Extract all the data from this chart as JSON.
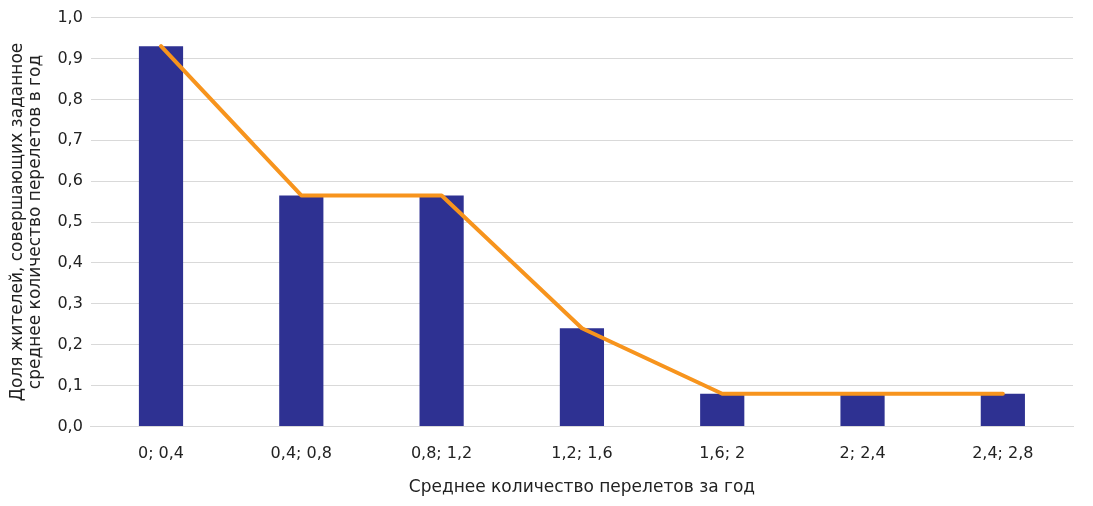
{
  "chart_data": {
    "type": "bar",
    "xlabel": "Среднее количество перелетов за год",
    "ylabel": "Доля жителей, совершающих заданное среднее количество перелетов в год",
    "categories": [
      "0; 0,4",
      "0,4; 0,8",
      "0,8; 1,2",
      "1,2; 1,6",
      "1,6; 2",
      "2; 2,4",
      "2,4; 2,8"
    ],
    "series": [
      {
        "color": "#2e3192",
        "values": [
          0.93,
          0.565,
          0.565,
          0.24,
          0.08,
          0.08,
          0.08
        ]
      },
      {
        "type": "line",
        "color": "#f7941d",
        "values": [
          0.93,
          0.565,
          0.565,
          0.24,
          0.08,
          0.08,
          0.08
        ]
      }
    ],
    "ylim": [
      0,
      1
    ],
    "yticks": [
      {
        "value": 0,
        "label": "0,0"
      },
      {
        "value": 0.1,
        "label": "0,1"
      },
      {
        "value": 0.2,
        "label": "0,2"
      },
      {
        "value": 0.3,
        "label": "0,3"
      },
      {
        "value": 0.4,
        "label": "0,4"
      },
      {
        "value": 0.5,
        "label": "0,5"
      },
      {
        "value": 0.6,
        "label": "0,6"
      },
      {
        "value": 0.7,
        "label": "0,7"
      },
      {
        "value": 0.8,
        "label": "0,8"
      },
      {
        "value": 0.9,
        "label": "0,9"
      },
      {
        "value": 1,
        "label": "1,0"
      }
    ],
    "grid": "y",
    "legend": false,
    "marker": "none",
    "line_style": "solid"
  }
}
